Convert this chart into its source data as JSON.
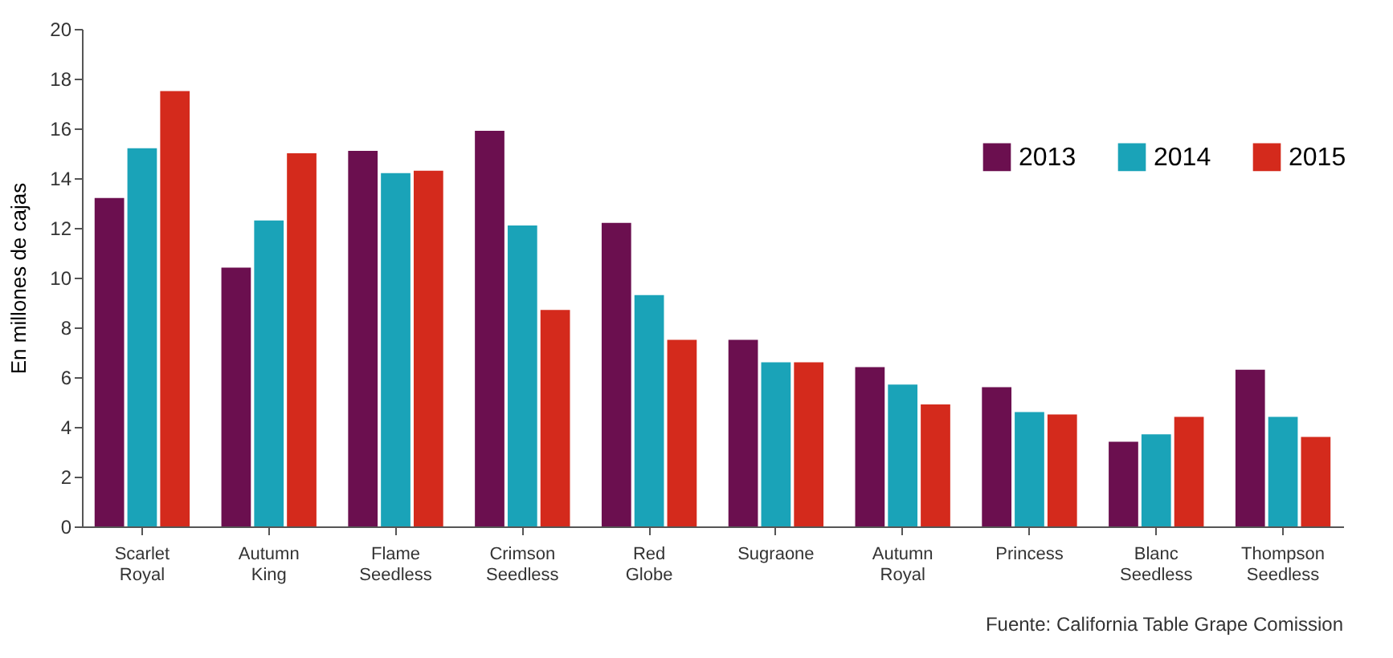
{
  "chart_data": {
    "type": "bar",
    "categories": [
      "Scarlet Royal",
      "Autumn King",
      "Flame Seedless",
      "Crimson Seedless",
      "Red Globe",
      "Sugraone",
      "Autumn Royal",
      "Princess",
      "Blanc Seedless",
      "Thompson Seedless"
    ],
    "series": [
      {
        "name": "2013",
        "color": "#6b0f4f",
        "values": [
          13.2,
          10.4,
          15.1,
          15.9,
          12.2,
          7.5,
          6.4,
          5.6,
          3.4,
          6.3
        ]
      },
      {
        "name": "2014",
        "color": "#1aa3b8",
        "values": [
          15.2,
          12.3,
          14.2,
          12.1,
          9.3,
          6.6,
          5.7,
          4.6,
          3.7,
          4.4
        ]
      },
      {
        "name": "2015",
        "color": "#d42a1c",
        "values": [
          17.5,
          15.0,
          14.3,
          8.7,
          7.5,
          6.6,
          4.9,
          4.5,
          4.4,
          3.6
        ]
      }
    ],
    "ylabel": "En millones de cajas",
    "ylim": [
      0,
      20
    ],
    "yticks": [
      0,
      2,
      4,
      6,
      8,
      10,
      12,
      14,
      16,
      18,
      20
    ],
    "grid": false,
    "legend": "top right",
    "annotations": [
      "Fuente: California Table Grape Comission"
    ]
  }
}
